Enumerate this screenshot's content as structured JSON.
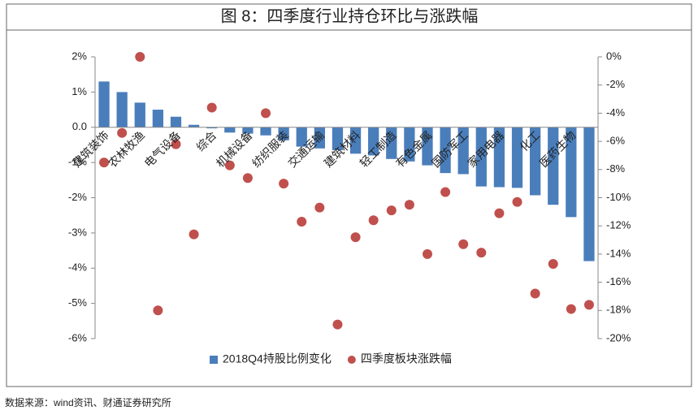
{
  "chart_data": {
    "type": "bar",
    "title": "图 8：四季度行业持仓环比与涨跌幅",
    "source": "数据来源：wind资讯、财通证券研究所",
    "categories": [
      "建筑装饰",
      null,
      "农林牧渔",
      null,
      "电气设备",
      null,
      "综合",
      null,
      "机械设备",
      null,
      "纺织服装",
      null,
      "交通运输",
      null,
      "建筑材料",
      null,
      "轻工制造",
      null,
      "有色金属",
      null,
      "国防军工",
      null,
      "家用电器",
      null,
      "化工",
      null,
      "医药生物",
      null
    ],
    "series": [
      {
        "name": "2018Q4持股比例变化",
        "type": "bar",
        "color": "#4a7ebb",
        "values": [
          1.3,
          1.0,
          0.7,
          0.5,
          0.3,
          0.07,
          -0.03,
          -0.15,
          -0.18,
          -0.23,
          -0.37,
          -0.55,
          -0.6,
          -0.65,
          -0.75,
          -0.8,
          -0.9,
          -0.97,
          -1.08,
          -1.3,
          -1.33,
          -1.68,
          -1.7,
          -1.72,
          -1.93,
          -2.2,
          -2.55,
          -3.8
        ]
      },
      {
        "name": "四季度板块涨跌幅",
        "type": "scatter",
        "axis": "y2",
        "color": "#c0504d",
        "values": [
          -7.5,
          -5.4,
          0,
          -18.0,
          -6.2,
          -12.6,
          -3.6,
          -7.7,
          -8.6,
          -4.0,
          -9.0,
          -11.7,
          -10.7,
          -19.0,
          -12.8,
          -11.6,
          -10.9,
          -10.5,
          -14.0,
          -9.6,
          -13.3,
          -13.9,
          -11.1,
          -10.3,
          -16.8,
          -14.7,
          -17.9,
          -17.6
        ]
      }
    ],
    "ylim": [
      -6,
      2
    ],
    "yticks": [
      {
        "value": 2,
        "label": "2%"
      },
      {
        "value": 1,
        "label": "1%"
      },
      {
        "value": 0,
        "label": "0.0"
      },
      {
        "value": -1,
        "label": "-1%"
      },
      {
        "value": -2,
        "label": "-2%"
      },
      {
        "value": -3,
        "label": "-3%"
      },
      {
        "value": -4,
        "label": "-4%"
      },
      {
        "value": -5,
        "label": "-5%"
      },
      {
        "value": -6,
        "label": "-6%"
      }
    ],
    "y2lim": [
      -20,
      0
    ],
    "y2ticks": [
      {
        "value": 0,
        "label": "0%"
      },
      {
        "value": -2,
        "label": "-2%"
      },
      {
        "value": -4,
        "label": "-4%"
      },
      {
        "value": -6,
        "label": "-6%"
      },
      {
        "value": -8,
        "label": "-8%"
      },
      {
        "value": -10,
        "label": "-10%"
      },
      {
        "value": -12,
        "label": "-12%"
      },
      {
        "value": -14,
        "label": "-14%"
      },
      {
        "value": -16,
        "label": "-16%"
      },
      {
        "value": -18,
        "label": "-18%"
      },
      {
        "value": -20,
        "label": "-20%"
      }
    ],
    "legend": "bottom"
  }
}
